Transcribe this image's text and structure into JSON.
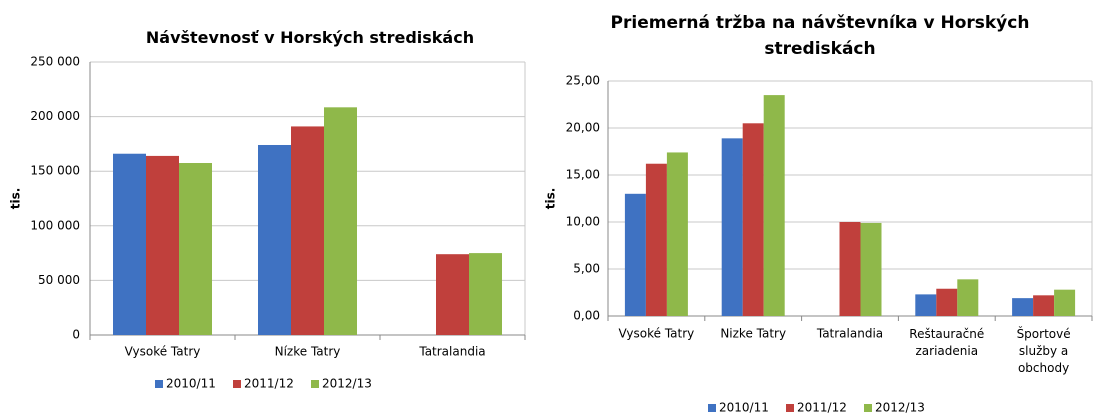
{
  "chart_data": [
    {
      "type": "bar",
      "title": "Návštevnosť v Horských strediskách",
      "y_label": "tis.",
      "categories": [
        "Vysoké Tatry",
        "Nízke Tatry",
        "Tatralandia"
      ],
      "series": [
        {
          "name": "2010/11",
          "color": "#3f72c2",
          "values": [
            166000,
            174000,
            null
          ]
        },
        {
          "name": "2011/12",
          "color": "#c0403c",
          "values": [
            164000,
            191000,
            74000
          ]
        },
        {
          "name": "2012/13",
          "color": "#8fb84a",
          "values": [
            157500,
            208500,
            75000
          ]
        }
      ],
      "ylim": [
        0,
        250000
      ],
      "yticks": [
        0,
        {
          "value": 50000,
          "label": "50 000"
        },
        {
          "value": 100000,
          "label": "100 000"
        },
        {
          "value": 150000,
          "label": "150 000"
        },
        {
          "value": 200000,
          "label": "200 000"
        },
        {
          "value": 250000,
          "label": "250 000"
        }
      ],
      "grid": true,
      "legend": "bottom"
    },
    {
      "type": "bar",
      "title": "Priemerná tržba na návštevníka v Horských strediskách",
      "y_label": "tis.",
      "categories": [
        "Vysoké Tatry",
        "Nizke Tatry",
        "Tatralandia",
        "Reštauračné zariadenia",
        "Športové služby a obchody"
      ],
      "series": [
        {
          "name": "2010/11",
          "color": "#3f72c2",
          "values": [
            13.0,
            18.9,
            null,
            2.3,
            1.9
          ]
        },
        {
          "name": "2011/12",
          "color": "#c0403c",
          "values": [
            16.2,
            20.5,
            10.0,
            2.9,
            2.2
          ]
        },
        {
          "name": "2012/13",
          "color": "#8fb84a",
          "values": [
            17.4,
            23.5,
            9.9,
            3.9,
            2.8
          ]
        }
      ],
      "ylim": [
        0,
        25
      ],
      "yticks": [
        {
          "value": 0,
          "label": "0,00"
        },
        {
          "value": 5,
          "label": "5,00"
        },
        {
          "value": 10,
          "label": "10,00"
        },
        {
          "value": 15,
          "label": "15,00"
        },
        {
          "value": 20,
          "label": "20,00"
        },
        {
          "value": 25,
          "label": "25,00"
        }
      ],
      "grid": true,
      "legend": "bottom"
    }
  ]
}
